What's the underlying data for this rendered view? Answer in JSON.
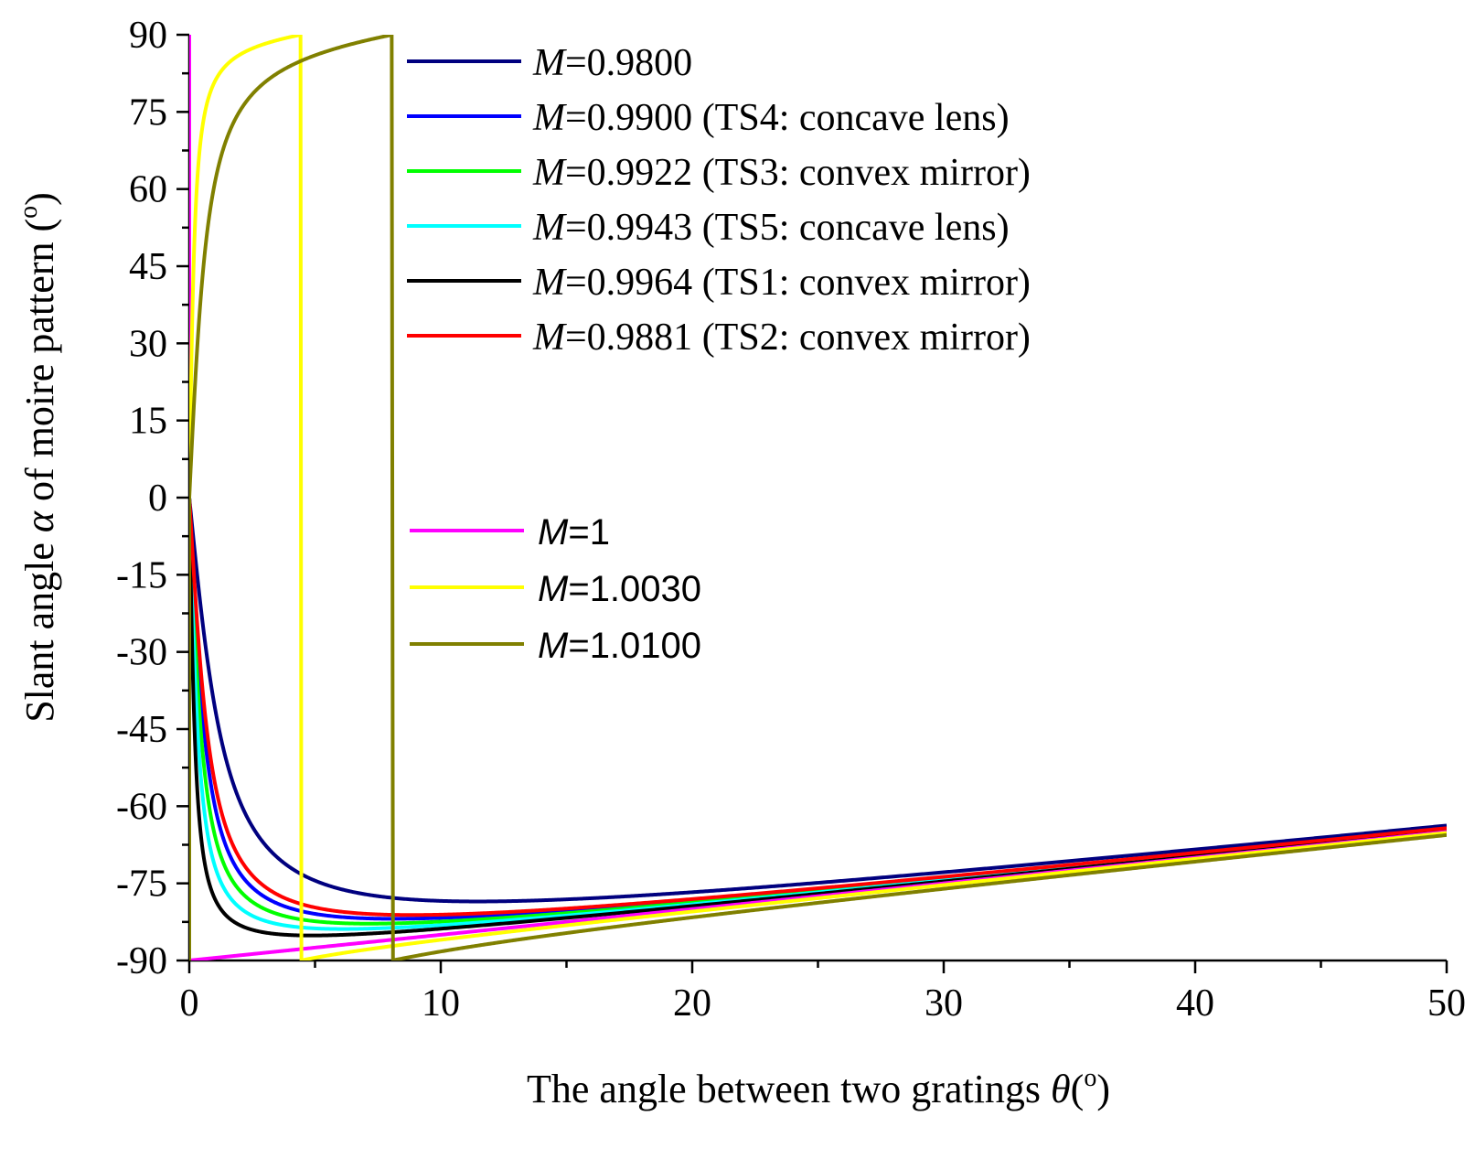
{
  "chart_data": {
    "type": "line",
    "xlabel": {
      "prefix": "The angle between two gratings",
      "symbol": "θ",
      "unit_open": "(",
      "unit_deg": "o",
      "unit_close": ")"
    },
    "ylabel": {
      "prefix": "Slant angle",
      "symbol": "α",
      "suffix": "of moire pattern",
      "unit_open": "(",
      "unit_deg": "o",
      "unit_close": ")"
    },
    "xlim": [
      0,
      50
    ],
    "ylim": [
      -90,
      90
    ],
    "xticks": [
      0,
      10,
      20,
      30,
      40,
      50
    ],
    "xtick_labels": [
      "0",
      "10",
      "20",
      "30",
      "40",
      "50"
    ],
    "yticks": [
      90,
      75,
      60,
      45,
      30,
      15,
      0,
      -15,
      -30,
      -45,
      -60,
      -75,
      -90
    ],
    "ytick_labels": [
      "90",
      "75",
      "60",
      "45",
      "30",
      "15",
      "0",
      "-15",
      "-30",
      "-45",
      "-60",
      "-75",
      "-90"
    ],
    "legend_position": "top-center",
    "series": [
      {
        "name": "M=0.9800",
        "M": 0.98,
        "color": "#00007f",
        "symbol": "M",
        "value_text": "=0.9800",
        "note": "",
        "group": 1
      },
      {
        "name": "M=0.9900 (TS4: concave lens)",
        "M": 0.99,
        "color": "#0000ff",
        "symbol": "M",
        "value_text": "=0.9900",
        "note": "(TS4: concave lens)",
        "group": 1
      },
      {
        "name": "M=0.9922 (TS3: convex mirror)",
        "M": 0.9922,
        "color": "#00ff00",
        "symbol": "M",
        "value_text": "=0.9922",
        "note": "(TS3: convex mirror)",
        "group": 1
      },
      {
        "name": "M=0.9943 (TS5: concave lens)",
        "M": 0.9943,
        "color": "#00ffff",
        "symbol": "M",
        "value_text": "=0.9943",
        "note": "(TS5: concave lens)",
        "group": 1
      },
      {
        "name": "M=0.9964 (TS1: convex mirror)",
        "M": 0.9964,
        "color": "#000000",
        "symbol": "M",
        "value_text": "=0.9964",
        "note": "(TS1: convex mirror)",
        "group": 1
      },
      {
        "name": "M=0.9881 (TS2: convex mirror)",
        "M": 0.9881,
        "color": "#ff0000",
        "symbol": "M",
        "value_text": "=0.9881",
        "note": "(TS2: convex mirror)",
        "group": 1
      },
      {
        "name": "M=1",
        "M": 1.0,
        "color": "#ff00ff",
        "symbol": "M",
        "value_text": "=1",
        "note": "",
        "group": 2
      },
      {
        "name": "M=1.0030",
        "M": 1.003,
        "color": "#ffff00",
        "symbol": "M",
        "value_text": "=1.0030",
        "note": "",
        "group": 2
      },
      {
        "name": "M=1.0100",
        "M": 1.01,
        "color": "#808000",
        "symbol": "M",
        "value_text": "=1.0100",
        "note": "",
        "group": 2
      }
    ]
  }
}
